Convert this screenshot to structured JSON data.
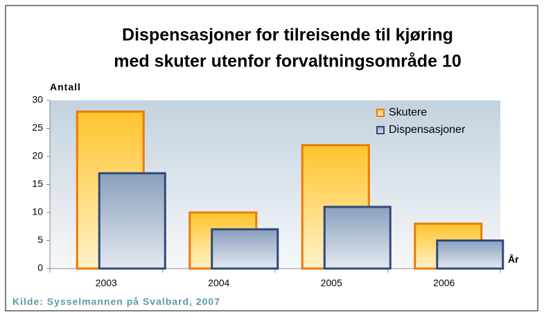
{
  "chart_data": {
    "type": "bar",
    "title": [
      "Dispensasjoner for tilreisende til kjøring",
      "med skuter utenfor forvaltningsområde 10"
    ],
    "y_label": "Antall",
    "x_label": "År",
    "source": "Kilde: Sysselmannen på Svalbard, 2007",
    "categories": [
      "2003",
      "2004",
      "2005",
      "2006"
    ],
    "series": [
      {
        "name": "Skutere",
        "color": "#f07800",
        "values": [
          28,
          10,
          22,
          8
        ]
      },
      {
        "name": "Dispensasjoner",
        "color": "#2c4a78",
        "values": [
          17,
          7,
          11,
          5
        ]
      }
    ],
    "ylim": [
      0,
      30
    ],
    "yticks": [
      0,
      5,
      10,
      15,
      20,
      25,
      30
    ],
    "legend": "upper right",
    "grid": false
  }
}
